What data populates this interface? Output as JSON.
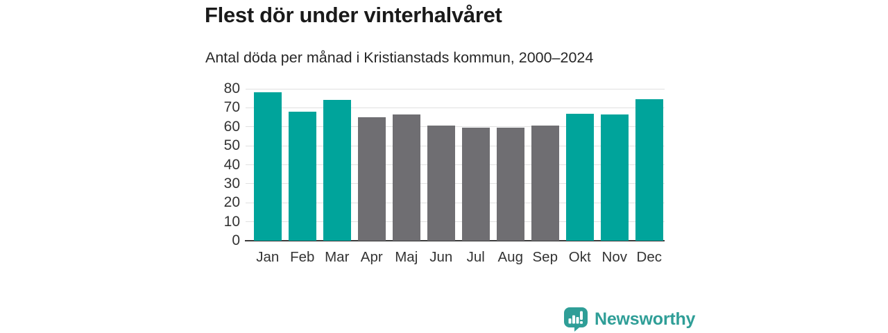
{
  "chart": {
    "title": "Flest dör under vinterhalvåret",
    "subtitle": "Antal döda per månad i Kristianstads kommun, 2000–2024"
  },
  "chart_data": {
    "type": "bar",
    "title": "Flest dör under vinterhalvåret",
    "subtitle": "Antal döda per månad i Kristianstads kommun, 2000–2024",
    "categories": [
      "Jan",
      "Feb",
      "Mar",
      "Apr",
      "Maj",
      "Jun",
      "Jul",
      "Aug",
      "Sep",
      "Okt",
      "Nov",
      "Dec"
    ],
    "values": [
      78,
      68,
      74,
      65,
      66.5,
      60.5,
      59.5,
      59.5,
      60.5,
      67,
      66.5,
      74.5
    ],
    "bar_color_keys": [
      "teal",
      "teal",
      "teal",
      "gray",
      "gray",
      "gray",
      "gray",
      "gray",
      "gray",
      "teal",
      "teal",
      "teal"
    ],
    "xlabel": "",
    "ylabel": "",
    "ylim": [
      0,
      80
    ],
    "ytick_step": 10,
    "yticks": [
      0,
      10,
      20,
      30,
      40,
      50,
      60,
      70,
      80
    ],
    "grid": true,
    "legend": false
  },
  "palette": {
    "bar_teal": "#00a49b",
    "bar_gray": "#6f6e72",
    "logo_teal": "#2f9e97",
    "grid": "#e0e0e0",
    "axis": "#3a3a3a"
  },
  "footer": {
    "brand": "Newsworthy"
  },
  "icons": {
    "logo": "newsworthy-speech-bubble-barchart-icon"
  }
}
